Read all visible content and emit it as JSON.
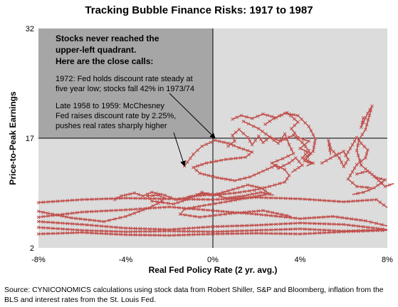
{
  "chart_data": {
    "type": "line",
    "title": "Tracking Bubble Finance Risks: 1917 to 1987",
    "xlabel": "Real Fed Policy Rate (2 yr. avg.)",
    "ylabel": "Price-to-Peak Earnings",
    "xlim": [
      -8,
      8
    ],
    "ylim": [
      2,
      32
    ],
    "x_ticks": [
      -8,
      -4,
      0,
      4,
      8
    ],
    "x_tick_labels": [
      "-8%",
      "-4%",
      "0%",
      "4%",
      "8%"
    ],
    "y_ticks": [
      2,
      17,
      32
    ],
    "y_tick_labels": [
      "2",
      "17",
      "32"
    ],
    "grid": false,
    "colors": {
      "series": "#c0504d",
      "upper_left_shade": "#a6a6a6",
      "plot_background": "#dcdcdc",
      "arrow": "#000000"
    },
    "shaded_region": {
      "x": [
        -8,
        0
      ],
      "y": [
        17,
        32
      ]
    },
    "annotations": {
      "heading": [
        "Stocks never reached the",
        "upper-left quadrant.",
        "Here are the close calls:"
      ],
      "call_1972": [
        "1972: Fed holds discount rate steady at",
        "five year low; stocks fall 42% in 1973/74"
      ],
      "call_1958": [
        "Late 1958 to 1959: McChesney",
        "Fed raises discount rate by 2.25%,",
        "pushes real rates sharply higher"
      ],
      "arrow_1972_target": [
        0.1,
        17.0
      ],
      "arrow_1958_target": [
        -1.3,
        13.2
      ]
    },
    "series": [
      {
        "values": [
          [
            -8,
            8.2
          ],
          [
            -6,
            8.6
          ],
          [
            -4,
            8.8
          ],
          [
            -2,
            8.7
          ],
          [
            0,
            8.6
          ],
          [
            2,
            8.9
          ],
          [
            4,
            8.7
          ],
          [
            6,
            8.3
          ],
          [
            7.5,
            8.6
          ],
          [
            8,
            7.5
          ]
        ]
      },
      {
        "values": [
          [
            -8,
            6.2
          ],
          [
            -6,
            6.9
          ],
          [
            -4,
            7.2
          ],
          [
            -2,
            7.6
          ],
          [
            0,
            7.1
          ],
          [
            2,
            6.6
          ],
          [
            4,
            6.0
          ],
          [
            5.5,
            6.3
          ],
          [
            7,
            5.7
          ],
          [
            8,
            5.0
          ]
        ]
      },
      {
        "values": [
          [
            -8,
            5.6
          ],
          [
            -6,
            5.2
          ],
          [
            -4,
            4.7
          ],
          [
            -2,
            4.5
          ],
          [
            0,
            4.9
          ],
          [
            2,
            5.1
          ],
          [
            4,
            5.4
          ],
          [
            6,
            5.2
          ],
          [
            8,
            4.5
          ]
        ]
      },
      {
        "values": [
          [
            -8,
            4.8
          ],
          [
            -6,
            4.4
          ],
          [
            -4,
            4.2
          ],
          [
            -2,
            4.3
          ],
          [
            0,
            4.2
          ],
          [
            2,
            4.4
          ],
          [
            4,
            4.6
          ],
          [
            6,
            4.3
          ],
          [
            8,
            4.5
          ]
        ]
      },
      {
        "values": [
          [
            -8,
            3.9
          ],
          [
            -6,
            4.1
          ],
          [
            -4,
            3.8
          ],
          [
            -2,
            3.7
          ],
          [
            0,
            3.9
          ],
          [
            2,
            4.0
          ],
          [
            4,
            3.9
          ],
          [
            6,
            4.2
          ],
          [
            8,
            4.4
          ]
        ]
      },
      {
        "values": [
          [
            -8,
            7.0
          ],
          [
            -6.5,
            6.1
          ],
          [
            -5,
            5.6
          ],
          [
            -4,
            6.3
          ],
          [
            -3,
            7.4
          ],
          [
            -2.5,
            8.1
          ],
          [
            -2.2,
            8.8
          ],
          [
            -2.5,
            9.2
          ],
          [
            -3,
            9.1
          ],
          [
            -2.8,
            8.4
          ],
          [
            -1.8,
            8.0
          ],
          [
            -1.2,
            8.6
          ],
          [
            -0.5,
            9.6
          ],
          [
            0,
            9.2
          ],
          [
            0.7,
            9.8
          ],
          [
            1.6,
            10.6
          ],
          [
            2.2,
            10.2
          ],
          [
            2.6,
            9.4
          ],
          [
            1.7,
            8.9
          ],
          [
            0.6,
            8.3
          ],
          [
            -0.4,
            7.8
          ],
          [
            -1.3,
            7.3
          ],
          [
            -1.5,
            6.6
          ],
          [
            -0.6,
            6.2
          ],
          [
            0.8,
            6.7
          ],
          [
            2.3,
            7.1
          ],
          [
            3.6,
            6.3
          ]
        ]
      },
      {
        "values": [
          [
            -4.5,
            8.6
          ],
          [
            -4.2,
            9.1
          ],
          [
            -3.6,
            9.5
          ],
          [
            -3.2,
            9.1
          ],
          [
            -2.8,
            9.6
          ],
          [
            -2.2,
            9.2
          ],
          [
            -1.7,
            8.6
          ],
          [
            -1.1,
            8.9
          ],
          [
            -0.5,
            9.4
          ],
          [
            0.1,
            9.3
          ],
          [
            0.6,
            8.8
          ],
          [
            1.4,
            9.1
          ],
          [
            2.2,
            9.6
          ],
          [
            2.8,
            9.2
          ]
        ]
      },
      {
        "values": [
          [
            -1.3,
            13.2
          ],
          [
            -0.9,
            14.8
          ],
          [
            -0.5,
            15.9
          ],
          [
            0.1,
            16.7
          ],
          [
            0.7,
            16.3
          ],
          [
            1.2,
            15.7
          ],
          [
            1.8,
            15.1
          ],
          [
            1.5,
            14.4
          ],
          [
            0.6,
            14.1
          ],
          [
            -0.3,
            13.6
          ],
          [
            -0.9,
            13.0
          ],
          [
            -0.6,
            12.2
          ],
          [
            0.2,
            11.6
          ],
          [
            1.0,
            11.2
          ],
          [
            1.7,
            11.7
          ],
          [
            2.3,
            12.5
          ],
          [
            2.9,
            13.3
          ],
          [
            3.3,
            12.7
          ],
          [
            3.5,
            11.9
          ],
          [
            3.3,
            11.0
          ],
          [
            2.6,
            10.4
          ],
          [
            1.9,
            9.9
          ],
          [
            1.0,
            9.5
          ],
          [
            0.3,
            9.3
          ],
          [
            -0.4,
            9.2
          ],
          [
            -1.2,
            9.0
          ]
        ]
      },
      {
        "values": [
          [
            0.7,
            15.9
          ],
          [
            1.0,
            16.6
          ],
          [
            0.9,
            17.4
          ],
          [
            1.2,
            18.2
          ],
          [
            1.6,
            17.1
          ],
          [
            1.8,
            16.1
          ],
          [
            2.1,
            17.3
          ],
          [
            2.3,
            16.4
          ],
          [
            2.6,
            17.1
          ],
          [
            3.0,
            16.3
          ],
          [
            3.3,
            17.6
          ],
          [
            3.5,
            16.1
          ],
          [
            3.7,
            14.9
          ],
          [
            3.2,
            14.2
          ],
          [
            2.7,
            13.6
          ],
          [
            3.0,
            12.9
          ],
          [
            3.5,
            13.6
          ],
          [
            3.8,
            14.3
          ],
          [
            4.1,
            13.3
          ],
          [
            3.6,
            12.3
          ]
        ]
      },
      {
        "values": [
          [
            0.9,
            19.6
          ],
          [
            1.3,
            20.1
          ],
          [
            1.8,
            19.7
          ],
          [
            2.3,
            20.3
          ],
          [
            2.9,
            19.8
          ],
          [
            3.4,
            20.5
          ],
          [
            3.9,
            19.2
          ],
          [
            3.6,
            18.3
          ],
          [
            3.9,
            17.1
          ],
          [
            4.4,
            16.6
          ],
          [
            4.0,
            15.6
          ],
          [
            4.5,
            14.9
          ],
          [
            4.2,
            13.9
          ],
          [
            4.6,
            13.5
          ]
        ]
      },
      {
        "values": [
          [
            1.4,
            19.3
          ],
          [
            2.1,
            18.3
          ],
          [
            2.6,
            17.2
          ],
          [
            3.1,
            16.6
          ],
          [
            3.7,
            17.4
          ],
          [
            4.1,
            16.4
          ],
          [
            4.4,
            15.3
          ],
          [
            4.1,
            14.3
          ],
          [
            4.6,
            13.6
          ],
          [
            4.3,
            13.2
          ]
        ]
      },
      {
        "values": [
          [
            2.4,
            18.9
          ],
          [
            2.8,
            19.7
          ],
          [
            3.3,
            20.4
          ],
          [
            3.9,
            20.1
          ],
          [
            4.4,
            18.6
          ],
          [
            4.7,
            16.9
          ],
          [
            4.6,
            15.2
          ],
          [
            4.2,
            14.3
          ]
        ]
      },
      {
        "values": [
          [
            6.1,
            14.6
          ],
          [
            6.3,
            15.6
          ],
          [
            6.6,
            17.1
          ],
          [
            6.8,
            16.3
          ],
          [
            7.1,
            15.4
          ],
          [
            7.0,
            14.3
          ],
          [
            6.6,
            13.4
          ],
          [
            6.4,
            12.4
          ],
          [
            6.2,
            11.4
          ],
          [
            6.6,
            10.4
          ],
          [
            7.3,
            10.2
          ]
        ]
      },
      {
        "values": [
          [
            6.9,
            19.8
          ],
          [
            6.8,
            18.5
          ],
          [
            7.1,
            20.4
          ],
          [
            7.3,
            21.4
          ],
          [
            7.0,
            18.2
          ],
          [
            6.7,
            16.8
          ],
          [
            6.6,
            15.3
          ],
          [
            6.8,
            13.3
          ],
          [
            7.2,
            12.3
          ],
          [
            7.6,
            11.2
          ],
          [
            7.9,
            10.4
          ],
          [
            8.3,
            10.8
          ]
        ]
      },
      {
        "values": [
          [
            6.6,
            12.1
          ],
          [
            7.1,
            12.5
          ],
          [
            7.5,
            11.6
          ],
          [
            7.9,
            11.3
          ],
          [
            7.4,
            10.2
          ],
          [
            6.9,
            9.6
          ],
          [
            6.4,
            9.3
          ]
        ]
      },
      {
        "values": [
          [
            5.0,
            13.6
          ],
          [
            5.6,
            14.6
          ],
          [
            6.0,
            15.2
          ],
          [
            6.2,
            14.1
          ],
          [
            6.0,
            13.1
          ],
          [
            5.8,
            14.3
          ],
          [
            5.4,
            15.6
          ],
          [
            5.3,
            16.7
          ],
          [
            5.4,
            14.7
          ]
        ]
      }
    ]
  },
  "source_note": "Source: CYNICONOMICS calculations using stock data from Robert Shiller, S&P and Bloomberg, inflation from the BLS and interest rates from the St. Louis Fed."
}
